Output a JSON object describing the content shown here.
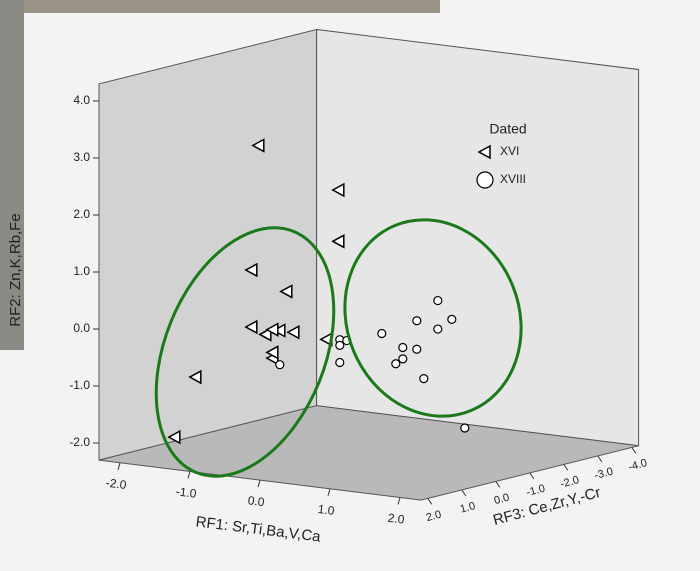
{
  "chart_data": {
    "type": "scatter3d",
    "xlabel": "RF1: Sr,Ti,Ba,V,Ca",
    "ylabel": "RF2: Zn,K,Rb,Fe",
    "zlabel": "RF3: Ce,Zr,Y,-Cr",
    "xlim": [
      -2.3,
      2.3
    ],
    "ylim": [
      -2.3,
      4.3
    ],
    "zlim": [
      -4.2,
      2.2
    ],
    "xticks": [
      {
        "value": -2,
        "label": "-2.0"
      },
      {
        "value": -1,
        "label": "-1.0"
      },
      {
        "value": 0,
        "label": "0.0"
      },
      {
        "value": 1,
        "label": "1.0"
      },
      {
        "value": 2,
        "label": "2.0"
      }
    ],
    "yticks": [
      {
        "value": -2,
        "label": "-2.0"
      },
      {
        "value": -1,
        "label": "-1.0"
      },
      {
        "value": 0,
        "label": "0.0"
      },
      {
        "value": 1,
        "label": "1.0"
      },
      {
        "value": 2,
        "label": "2.0"
      },
      {
        "value": 3,
        "label": "3.0"
      },
      {
        "value": 4,
        "label": "4.0"
      }
    ],
    "zticks": [
      {
        "value": 2,
        "label": "2.0"
      },
      {
        "value": 1,
        "label": "1.0"
      },
      {
        "value": 0,
        "label": "0.0"
      },
      {
        "value": -1,
        "label": "-1.0"
      },
      {
        "value": -2,
        "label": "-2.0"
      },
      {
        "value": -3,
        "label": "-3.0"
      },
      {
        "value": -4,
        "label": "-4.0"
      }
    ],
    "legend_title": "Dated",
    "legend": "upper right",
    "series": [
      {
        "name": "XVI",
        "marker": "triangle",
        "color": "#000000",
        "x": [
          -0.6,
          -1.4,
          -1.4,
          -0.7,
          -0.2,
          -0.7,
          -0.5,
          -0.3,
          -0.1,
          -0.4,
          -0.4,
          -0.4,
          -0.6,
          -1.5,
          -1.8
        ],
        "values": [
          3.3,
          1.8,
          0.9,
          1.1,
          0.8,
          0.1,
          0.0,
          0.1,
          0.1,
          0.1,
          -0.4,
          -0.3,
          -0.4,
          -0.9,
          -2.0
        ],
        "z": [
          1,
          -3,
          -3,
          1,
          1,
          1,
          1,
          1,
          1,
          1,
          1,
          1,
          -1,
          1,
          1
        ]
      },
      {
        "name": "XVIII",
        "marker": "circle",
        "color": "#000000",
        "x": [
          0.5,
          0.2,
          0.7,
          0.5,
          -0.3,
          0.0,
          0.2,
          -0.1,
          0.0,
          0.3,
          -0.9,
          -0.9,
          -0.8,
          -0.9,
          -0.3,
          0.4
        ],
        "values": [
          0.3,
          -0.1,
          0.0,
          -0.2,
          -0.4,
          -0.6,
          -0.6,
          -0.9,
          -0.8,
          -1.1,
          -0.6,
          -0.7,
          -0.6,
          -1.0,
          -0.5,
          -2.1
        ],
        "z": [
          -2,
          -2,
          -2,
          -2,
          -2,
          -2,
          -2,
          -2,
          -2,
          -2,
          -2,
          -2,
          -2,
          -2,
          1,
          -3
        ]
      }
    ]
  }
}
